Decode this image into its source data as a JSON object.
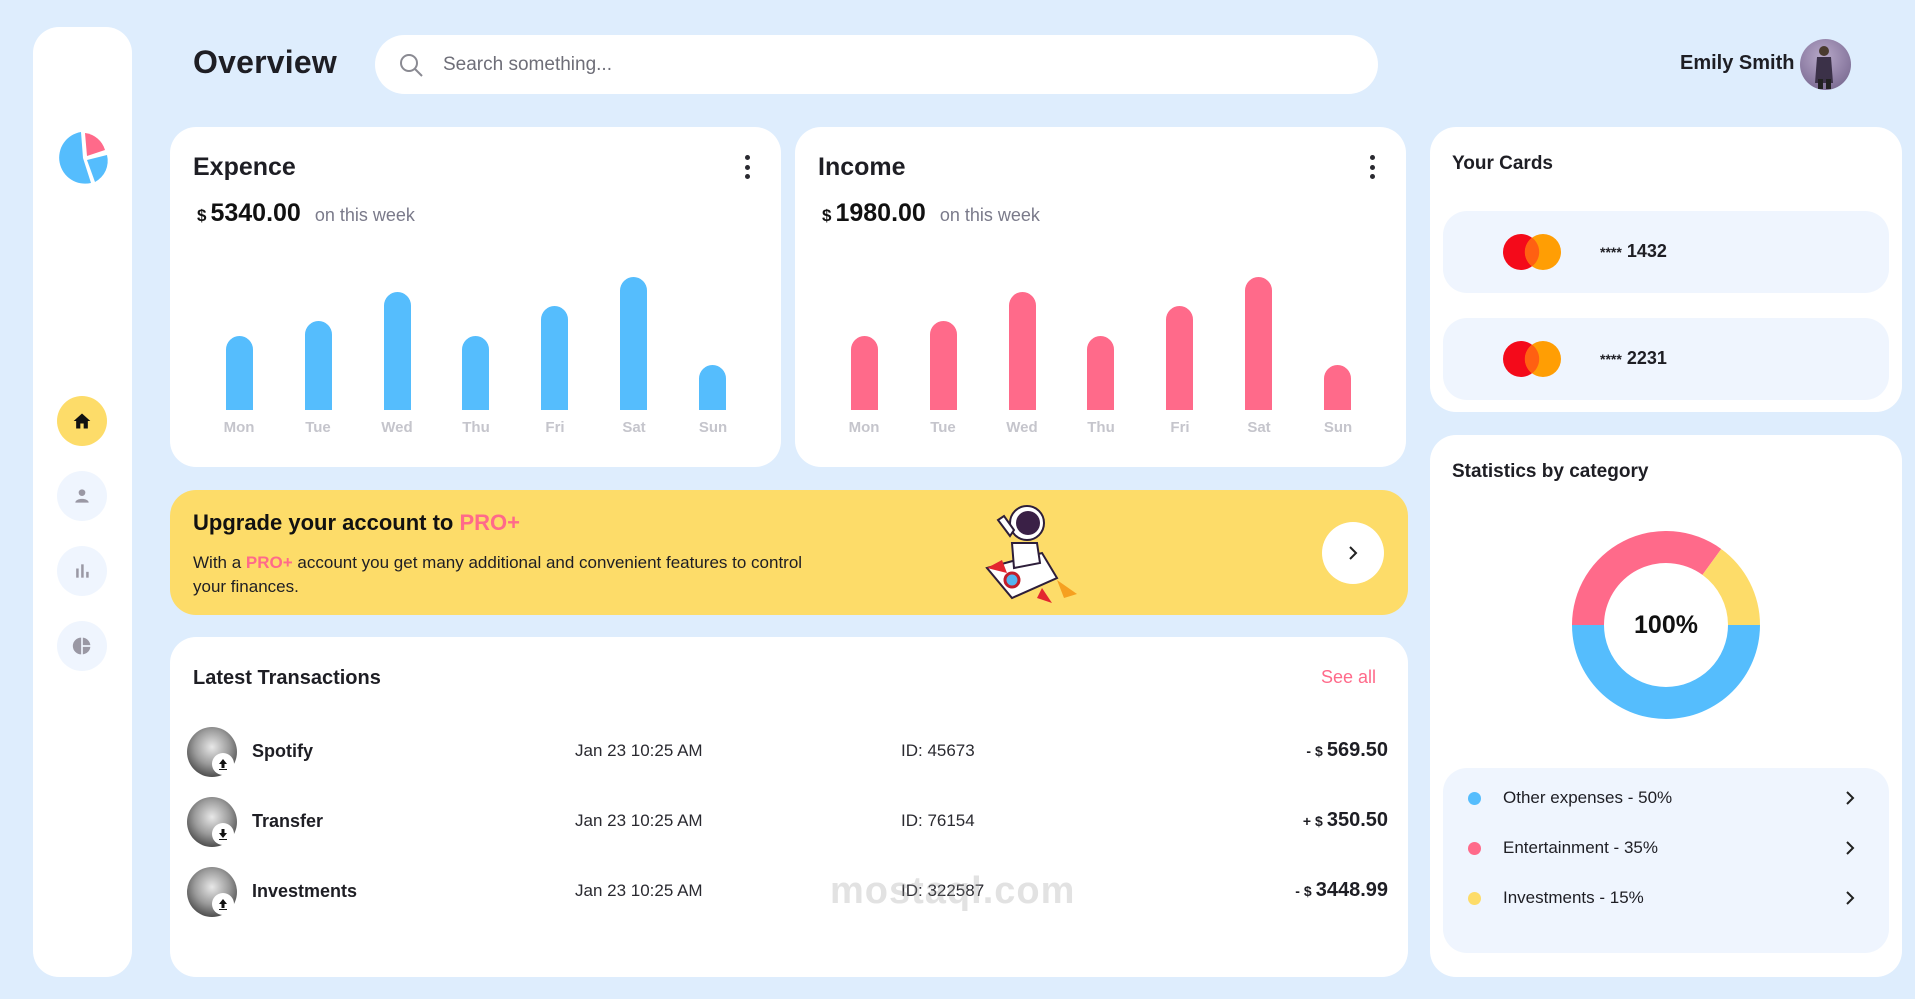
{
  "header": {
    "title": "Overview",
    "search_placeholder": "Search something...",
    "user_name": "Emily Smith"
  },
  "sidebar": {
    "items": [
      {
        "name": "home",
        "icon": "home-icon",
        "active": true
      },
      {
        "name": "profile",
        "icon": "user-icon",
        "active": false
      },
      {
        "name": "analytics",
        "icon": "bar-chart-icon",
        "active": false
      },
      {
        "name": "reports",
        "icon": "pie-chart-icon",
        "active": false
      }
    ]
  },
  "expense": {
    "title": "Expence",
    "currency": "$",
    "amount": "5340.00",
    "period": "on this week"
  },
  "income": {
    "title": "Income",
    "currency": "$",
    "amount": "1980.00",
    "period": "on this week"
  },
  "promo": {
    "title_prefix": "Upgrade your account to ",
    "title_highlight": "PRO+",
    "text_prefix": "With a ",
    "text_highlight": "PRO+",
    "text_suffix": " account you get many additional and convenient features to control your finances."
  },
  "transactions": {
    "title": "Latest Transactions",
    "see_all": "See all",
    "rows": [
      {
        "name": "Spotify",
        "date": "Jan 23 10:25 AM",
        "id": "ID: 45673",
        "sign": "-",
        "currency": "$",
        "amount": "569.50",
        "direction": "up"
      },
      {
        "name": "Transfer",
        "date": "Jan 23 10:25 AM",
        "id": "ID: 76154",
        "sign": "+",
        "currency": "$",
        "amount": "350.50",
        "direction": "down"
      },
      {
        "name": "Investments",
        "date": "Jan 23 10:25 AM",
        "id": "ID: 322587",
        "sign": "-",
        "currency": "$",
        "amount": "3448.99",
        "direction": "up"
      }
    ]
  },
  "cards": {
    "title": "Your Cards",
    "items": [
      {
        "mask": "****",
        "last4": "1432",
        "brand": "mastercard"
      },
      {
        "mask": "****",
        "last4": "2231",
        "brand": "mastercard"
      }
    ]
  },
  "stats": {
    "title": "Statistics by category",
    "center_label": "100%",
    "legend": [
      {
        "label": "Other expenses - 50%",
        "color": "#55bdfd"
      },
      {
        "label": "Entertainment - 35%",
        "color": "#ff6a8a"
      },
      {
        "label": "Investments - 15%",
        "color": "#fddc69"
      }
    ]
  },
  "colors": {
    "background": "#deedfd",
    "blue": "#55bdfd",
    "pink": "#ff6a8a",
    "yellow": "#fddc69",
    "panel": "#eff5fe"
  },
  "watermark": "mostaql.com",
  "chart_data": [
    {
      "type": "bar",
      "title": "Expence",
      "categories": [
        "Mon",
        "Tue",
        "Wed",
        "Thu",
        "Fri",
        "Sat",
        "Sun"
      ],
      "values": [
        74,
        89,
        118,
        74,
        104,
        133,
        45
      ],
      "color": "#55bdfd",
      "xlabel": "",
      "ylabel": "",
      "grid": false
    },
    {
      "type": "bar",
      "title": "Income",
      "categories": [
        "Mon",
        "Tue",
        "Wed",
        "Thu",
        "Fri",
        "Sat",
        "Sun"
      ],
      "values": [
        74,
        89,
        118,
        74,
        104,
        133,
        45
      ],
      "color": "#ff6a8a",
      "xlabel": "",
      "ylabel": "",
      "grid": false
    },
    {
      "type": "pie",
      "title": "Statistics by category",
      "categories": [
        "Other expenses",
        "Entertainment",
        "Investments"
      ],
      "values": [
        50,
        35,
        15
      ],
      "colors": [
        "#55bdfd",
        "#ff6a8a",
        "#fddc69"
      ],
      "center_label": "100%"
    }
  ]
}
